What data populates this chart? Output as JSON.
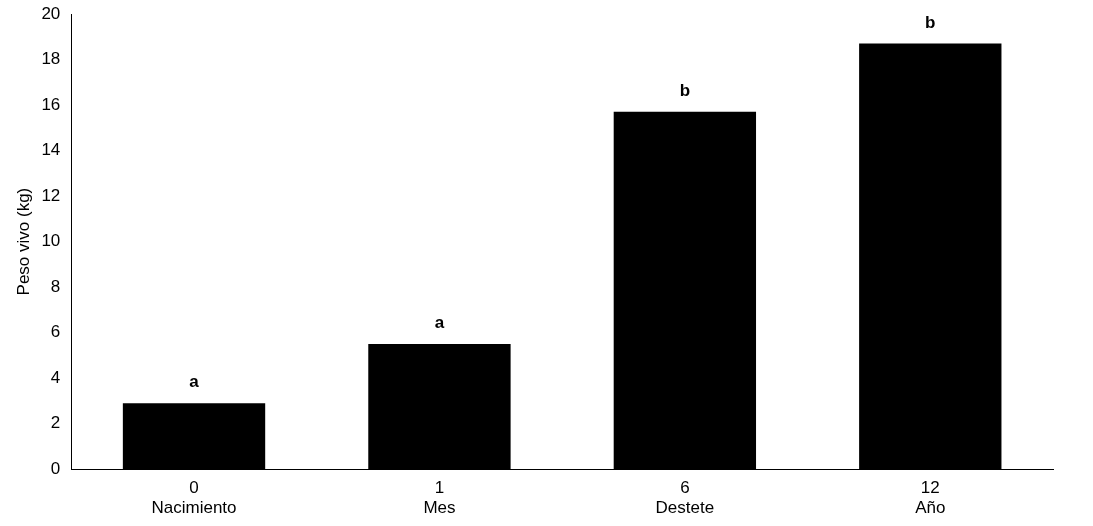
{
  "chart_data": {
    "type": "bar",
    "ylabel": "Peso vivo (kg)",
    "categories": [
      "0\nNacimiento",
      "1\nMes",
      "6\nDestete",
      "12\nAño"
    ],
    "values": [
      2.9,
      5.5,
      15.7,
      18.7
    ],
    "color": "#000000",
    "ylim": [
      0,
      20
    ],
    "yticks": [
      0,
      2,
      4,
      6,
      8,
      10,
      12,
      14,
      16,
      18,
      20
    ],
    "grid": false,
    "legend": false,
    "annotations": [
      {
        "text": "a",
        "x": "0\nNacimiento",
        "y": 2.9
      },
      {
        "text": "a",
        "x": "1\nMes",
        "y": 5.5
      },
      {
        "text": "b",
        "x": "6\nDestete",
        "y": 15.7
      },
      {
        "text": "b",
        "x": "12\nAño",
        "y": 18.7
      }
    ]
  }
}
